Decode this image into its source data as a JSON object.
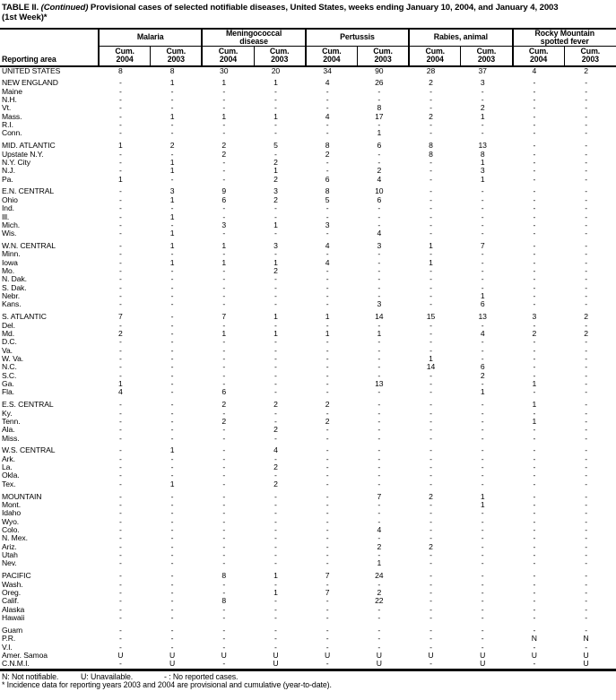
{
  "colors": {
    "text": "#000000",
    "background": "#ffffff"
  },
  "title": {
    "table_no": "TABLE II.",
    "continued": "(Continued)",
    "rest": "Provisional cases of selected notifiable diseases, United States, weeks ending January 10, 2004, and January 4, 2003",
    "line2": "(1st Week)*"
  },
  "table": {
    "reporting_area_label": "Reporting area",
    "groups": [
      {
        "label": "Malaria"
      },
      {
        "label": "Meningococcal\ndisease"
      },
      {
        "label": "Pertussis"
      },
      {
        "label": "Rabies, animal"
      },
      {
        "label": "Rocky Mountain\nspotted fever"
      }
    ],
    "subs": [
      "Cum.\n2004",
      "Cum.\n2003"
    ],
    "rows": [
      {
        "area": "UNITED STATES",
        "gap": false,
        "values": [
          "8",
          "8",
          "30",
          "20",
          "34",
          "90",
          "28",
          "37",
          "4",
          "2"
        ]
      },
      {
        "area": "NEW ENGLAND",
        "gap": true,
        "values": [
          "-",
          "1",
          "1",
          "1",
          "4",
          "26",
          "2",
          "3",
          "-",
          "-"
        ]
      },
      {
        "area": "Maine",
        "gap": false,
        "values": [
          "-",
          "-",
          "-",
          "-",
          "-",
          "-",
          "-",
          "-",
          "-",
          "-"
        ]
      },
      {
        "area": "N.H.",
        "gap": false,
        "values": [
          "-",
          "-",
          "-",
          "-",
          "-",
          "-",
          "-",
          "-",
          "-",
          "-"
        ]
      },
      {
        "area": "Vt.",
        "gap": false,
        "values": [
          "-",
          "-",
          "-",
          "-",
          "-",
          "8",
          "-",
          "2",
          "-",
          "-"
        ]
      },
      {
        "area": "Mass.",
        "gap": false,
        "values": [
          "-",
          "1",
          "1",
          "1",
          "4",
          "17",
          "2",
          "1",
          "-",
          "-"
        ]
      },
      {
        "area": "R.I.",
        "gap": false,
        "values": [
          "-",
          "-",
          "-",
          "-",
          "-",
          "-",
          "-",
          "-",
          "-",
          "-"
        ]
      },
      {
        "area": "Conn.",
        "gap": false,
        "values": [
          "-",
          "-",
          "-",
          "-",
          "-",
          "1",
          "-",
          "-",
          "-",
          "-"
        ]
      },
      {
        "area": "MID. ATLANTIC",
        "gap": true,
        "values": [
          "1",
          "2",
          "2",
          "5",
          "8",
          "6",
          "8",
          "13",
          "-",
          "-"
        ]
      },
      {
        "area": "Upstate N.Y.",
        "gap": false,
        "values": [
          "-",
          "-",
          "2",
          "-",
          "2",
          "-",
          "8",
          "8",
          "-",
          "-"
        ]
      },
      {
        "area": "N.Y. City",
        "gap": false,
        "values": [
          "-",
          "1",
          "-",
          "2",
          "-",
          "-",
          "-",
          "1",
          "-",
          "-"
        ]
      },
      {
        "area": "N.J.",
        "gap": false,
        "values": [
          "-",
          "1",
          "-",
          "1",
          "-",
          "2",
          "-",
          "3",
          "-",
          "-"
        ]
      },
      {
        "area": "Pa.",
        "gap": false,
        "values": [
          "1",
          "-",
          "-",
          "2",
          "6",
          "4",
          "-",
          "1",
          "-",
          "-"
        ]
      },
      {
        "area": "E.N. CENTRAL",
        "gap": true,
        "values": [
          "-",
          "3",
          "9",
          "3",
          "8",
          "10",
          "-",
          "-",
          "-",
          "-"
        ]
      },
      {
        "area": "Ohio",
        "gap": false,
        "values": [
          "-",
          "1",
          "6",
          "2",
          "5",
          "6",
          "-",
          "-",
          "-",
          "-"
        ]
      },
      {
        "area": "Ind.",
        "gap": false,
        "values": [
          "-",
          "-",
          "-",
          "-",
          "-",
          "-",
          "-",
          "-",
          "-",
          "-"
        ]
      },
      {
        "area": "Ill.",
        "gap": false,
        "values": [
          "-",
          "1",
          "-",
          "-",
          "-",
          "-",
          "-",
          "-",
          "-",
          "-"
        ]
      },
      {
        "area": "Mich.",
        "gap": false,
        "values": [
          "-",
          "-",
          "3",
          "1",
          "3",
          "-",
          "-",
          "-",
          "-",
          "-"
        ]
      },
      {
        "area": "Wis.",
        "gap": false,
        "values": [
          "-",
          "1",
          "-",
          "-",
          "-",
          "4",
          "-",
          "-",
          "-",
          "-"
        ]
      },
      {
        "area": "W.N. CENTRAL",
        "gap": true,
        "values": [
          "-",
          "1",
          "1",
          "3",
          "4",
          "3",
          "1",
          "7",
          "-",
          "-"
        ]
      },
      {
        "area": "Minn.",
        "gap": false,
        "values": [
          "-",
          "-",
          "-",
          "-",
          "-",
          "-",
          "-",
          "-",
          "-",
          "-"
        ]
      },
      {
        "area": "Iowa",
        "gap": false,
        "values": [
          "-",
          "1",
          "1",
          "1",
          "4",
          "-",
          "1",
          "-",
          "-",
          "-"
        ]
      },
      {
        "area": "Mo.",
        "gap": false,
        "values": [
          "-",
          "-",
          "-",
          "2",
          "-",
          "-",
          "-",
          "-",
          "-",
          "-"
        ]
      },
      {
        "area": "N. Dak.",
        "gap": false,
        "values": [
          "-",
          "-",
          "-",
          "-",
          "-",
          "-",
          "-",
          "-",
          "-",
          "-"
        ]
      },
      {
        "area": "S. Dak.",
        "gap": false,
        "values": [
          "-",
          "-",
          "-",
          "-",
          "-",
          "-",
          "-",
          "-",
          "-",
          "-"
        ]
      },
      {
        "area": "Nebr.",
        "gap": false,
        "values": [
          "-",
          "-",
          "-",
          "-",
          "-",
          "-",
          "-",
          "1",
          "-",
          "-"
        ]
      },
      {
        "area": "Kans.",
        "gap": false,
        "values": [
          "-",
          "-",
          "-",
          "-",
          "-",
          "3",
          "-",
          "6",
          "-",
          "-"
        ]
      },
      {
        "area": "S. ATLANTIC",
        "gap": true,
        "values": [
          "7",
          "-",
          "7",
          "1",
          "1",
          "14",
          "15",
          "13",
          "3",
          "2"
        ]
      },
      {
        "area": "Del.",
        "gap": false,
        "values": [
          "-",
          "-",
          "-",
          "-",
          "-",
          "-",
          "-",
          "-",
          "-",
          "-"
        ]
      },
      {
        "area": "Md.",
        "gap": false,
        "values": [
          "2",
          "-",
          "1",
          "1",
          "1",
          "1",
          "-",
          "4",
          "2",
          "2"
        ]
      },
      {
        "area": "D.C.",
        "gap": false,
        "values": [
          "-",
          "-",
          "-",
          "-",
          "-",
          "-",
          "-",
          "-",
          "-",
          "-"
        ]
      },
      {
        "area": "Va.",
        "gap": false,
        "values": [
          "-",
          "-",
          "-",
          "-",
          "-",
          "-",
          "-",
          "-",
          "-",
          "-"
        ]
      },
      {
        "area": "W. Va.",
        "gap": false,
        "values": [
          "-",
          "-",
          "-",
          "-",
          "-",
          "-",
          "1",
          "-",
          "-",
          "-"
        ]
      },
      {
        "area": "N.C.",
        "gap": false,
        "values": [
          "-",
          "-",
          "-",
          "-",
          "-",
          "-",
          "14",
          "6",
          "-",
          "-"
        ]
      },
      {
        "area": "S.C.",
        "gap": false,
        "values": [
          "-",
          "-",
          "-",
          "-",
          "-",
          "-",
          "-",
          "2",
          "-",
          "-"
        ]
      },
      {
        "area": "Ga.",
        "gap": false,
        "values": [
          "1",
          "-",
          "-",
          "-",
          "-",
          "13",
          "-",
          "-",
          "1",
          "-"
        ]
      },
      {
        "area": "Fla.",
        "gap": false,
        "values": [
          "4",
          "-",
          "6",
          "-",
          "-",
          "-",
          "-",
          "1",
          "-",
          "-"
        ]
      },
      {
        "area": "E.S. CENTRAL",
        "gap": true,
        "values": [
          "-",
          "-",
          "2",
          "2",
          "2",
          "-",
          "-",
          "-",
          "1",
          "-"
        ]
      },
      {
        "area": "Ky.",
        "gap": false,
        "values": [
          "-",
          "-",
          "-",
          "-",
          "-",
          "-",
          "-",
          "-",
          "-",
          "-"
        ]
      },
      {
        "area": "Tenn.",
        "gap": false,
        "values": [
          "-",
          "-",
          "2",
          "-",
          "2",
          "-",
          "-",
          "-",
          "1",
          "-"
        ]
      },
      {
        "area": "Ala.",
        "gap": false,
        "values": [
          "-",
          "-",
          "-",
          "2",
          "-",
          "-",
          "-",
          "-",
          "-",
          "-"
        ]
      },
      {
        "area": "Miss.",
        "gap": false,
        "values": [
          "-",
          "-",
          "-",
          "-",
          "-",
          "-",
          "-",
          "-",
          "-",
          "-"
        ]
      },
      {
        "area": "W.S. CENTRAL",
        "gap": true,
        "values": [
          "-",
          "1",
          "-",
          "4",
          "-",
          "-",
          "-",
          "-",
          "-",
          "-"
        ]
      },
      {
        "area": "Ark.",
        "gap": false,
        "values": [
          "-",
          "-",
          "-",
          "-",
          "-",
          "-",
          "-",
          "-",
          "-",
          "-"
        ]
      },
      {
        "area": "La.",
        "gap": false,
        "values": [
          "-",
          "-",
          "-",
          "2",
          "-",
          "-",
          "-",
          "-",
          "-",
          "-"
        ]
      },
      {
        "area": "Okla.",
        "gap": false,
        "values": [
          "-",
          "-",
          "-",
          "-",
          "-",
          "-",
          "-",
          "-",
          "-",
          "-"
        ]
      },
      {
        "area": "Tex.",
        "gap": false,
        "values": [
          "-",
          "1",
          "-",
          "2",
          "-",
          "-",
          "-",
          "-",
          "-",
          "-"
        ]
      },
      {
        "area": "MOUNTAIN",
        "gap": true,
        "values": [
          "-",
          "-",
          "-",
          "-",
          "-",
          "7",
          "2",
          "1",
          "-",
          "-"
        ]
      },
      {
        "area": "Mont.",
        "gap": false,
        "values": [
          "-",
          "-",
          "-",
          "-",
          "-",
          "-",
          "-",
          "1",
          "-",
          "-"
        ]
      },
      {
        "area": "Idaho",
        "gap": false,
        "values": [
          "-",
          "-",
          "-",
          "-",
          "-",
          "-",
          "-",
          "-",
          "-",
          "-"
        ]
      },
      {
        "area": "Wyo.",
        "gap": false,
        "values": [
          "-",
          "-",
          "-",
          "-",
          "-",
          "-",
          "-",
          "-",
          "-",
          "-"
        ]
      },
      {
        "area": "Colo.",
        "gap": false,
        "values": [
          "-",
          "-",
          "-",
          "-",
          "-",
          "4",
          "-",
          "-",
          "-",
          "-"
        ]
      },
      {
        "area": "N. Mex.",
        "gap": false,
        "values": [
          "-",
          "-",
          "-",
          "-",
          "-",
          "-",
          "-",
          "-",
          "-",
          "-"
        ]
      },
      {
        "area": "Ariz.",
        "gap": false,
        "values": [
          "-",
          "-",
          "-",
          "-",
          "-",
          "2",
          "2",
          "-",
          "-",
          "-"
        ]
      },
      {
        "area": "Utah",
        "gap": false,
        "values": [
          "-",
          "-",
          "-",
          "-",
          "-",
          "-",
          "-",
          "-",
          "-",
          "-"
        ]
      },
      {
        "area": "Nev.",
        "gap": false,
        "values": [
          "-",
          "-",
          "-",
          "-",
          "-",
          "1",
          "-",
          "-",
          "-",
          "-"
        ]
      },
      {
        "area": "PACIFIC",
        "gap": true,
        "values": [
          "-",
          "-",
          "8",
          "1",
          "7",
          "24",
          "-",
          "-",
          "-",
          "-"
        ]
      },
      {
        "area": "Wash.",
        "gap": false,
        "values": [
          "-",
          "-",
          "-",
          "-",
          "-",
          "-",
          "-",
          "-",
          "-",
          "-"
        ]
      },
      {
        "area": "Oreg.",
        "gap": false,
        "values": [
          "-",
          "-",
          "-",
          "1",
          "7",
          "2",
          "-",
          "-",
          "-",
          "-"
        ]
      },
      {
        "area": "Calif.",
        "gap": false,
        "values": [
          "-",
          "-",
          "8",
          "-",
          "-",
          "22",
          "-",
          "-",
          "-",
          "-"
        ]
      },
      {
        "area": "Alaska",
        "gap": false,
        "values": [
          "-",
          "-",
          "-",
          "-",
          "-",
          "-",
          "-",
          "-",
          "-",
          "-"
        ]
      },
      {
        "area": "Hawaii",
        "gap": false,
        "values": [
          "-",
          "-",
          "-",
          "-",
          "-",
          "-",
          "-",
          "-",
          "-",
          "-"
        ]
      },
      {
        "area": "Guam",
        "gap": true,
        "values": [
          "-",
          "-",
          "-",
          "-",
          "-",
          "-",
          "-",
          "-",
          "-",
          "-"
        ]
      },
      {
        "area": "P.R.",
        "gap": false,
        "values": [
          "-",
          "-",
          "-",
          "-",
          "-",
          "-",
          "-",
          "-",
          "N",
          "N"
        ]
      },
      {
        "area": "V.I.",
        "gap": false,
        "values": [
          "-",
          "-",
          "-",
          "-",
          "-",
          "-",
          "-",
          "-",
          "-",
          "-"
        ]
      },
      {
        "area": "Amer. Samoa",
        "gap": false,
        "values": [
          "U",
          "U",
          "U",
          "U",
          "U",
          "U",
          "U",
          "U",
          "U",
          "U"
        ]
      },
      {
        "area": "C.N.M.I.",
        "gap": false,
        "values": [
          "-",
          "U",
          "-",
          "U",
          "-",
          "U",
          "-",
          "U",
          "-",
          "U"
        ]
      }
    ]
  },
  "footnotes": {
    "not_notifiable": "N: Not notifiable.",
    "unavailable": "U: Unavailable.",
    "no_cases": "- : No reported cases.",
    "incidence": "* Incidence data for reporting years 2003 and 2004 are provisional and cumulative (year-to-date)."
  }
}
